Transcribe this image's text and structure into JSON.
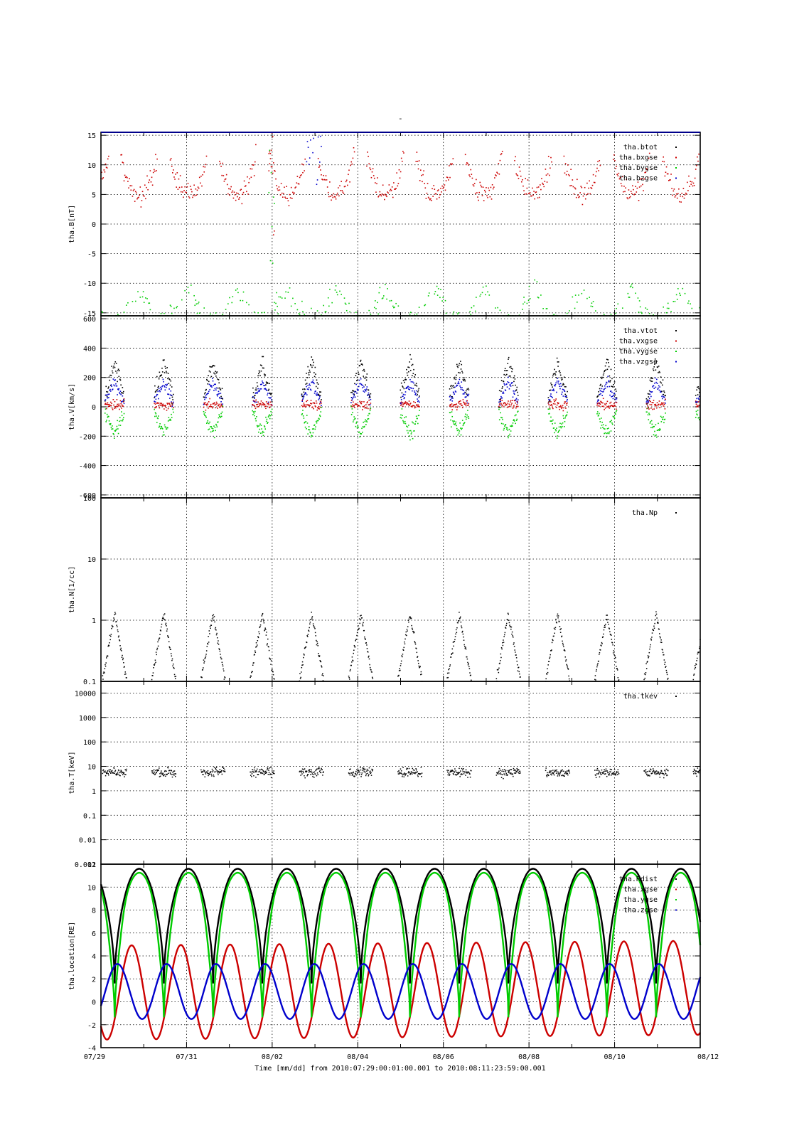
{
  "figure": {
    "title": "-",
    "x_axis_label": "Time [mm/dd]  from 2010:07:29:00:01:00.001  to  2010:08:11:23:59:00.001",
    "x_ticks": [
      "07/29",
      "07/31",
      "08/02",
      "08/04",
      "08/06",
      "08/08",
      "08/10",
      "08/12"
    ],
    "x_range_days": [
      0,
      14
    ]
  },
  "chart_data": [
    {
      "type": "scatter",
      "ylabel": "tha.B[nT]",
      "ylim": [
        -15.5,
        15.5
      ],
      "yticks": [
        15,
        10,
        5,
        0,
        -5,
        -10,
        -15
      ],
      "ytick_labels": [
        "15",
        "10",
        "5",
        "0",
        "-5",
        "-10",
        "-15"
      ],
      "grid": true,
      "legend_position": "top-right",
      "series": [
        {
          "name": "tha.btot",
          "color": "#000000"
        },
        {
          "name": "tha.bxgse",
          "color": "#cc0000"
        },
        {
          "name": "tha.bygse",
          "color": "#00cc00"
        },
        {
          "name": "tha.bzgse",
          "color": "#0000cc"
        }
      ]
    },
    {
      "type": "scatter",
      "ylabel": "tha.V[km/s]",
      "ylim": [
        -620,
        620
      ],
      "yticks": [
        600,
        400,
        200,
        0,
        -200,
        -400,
        -600
      ],
      "ytick_labels": [
        "600",
        "400",
        "200",
        "0",
        "-200",
        "-400",
        "-600"
      ],
      "grid": true,
      "legend_position": "top-right",
      "series": [
        {
          "name": "tha.vtot",
          "color": "#000000"
        },
        {
          "name": "tha.vxgse",
          "color": "#cc0000"
        },
        {
          "name": "tha.vygse",
          "color": "#00cc00"
        },
        {
          "name": "tha.vzgse",
          "color": "#0000cc"
        }
      ]
    },
    {
      "type": "scatter",
      "ylabel": "tha.N[1/cc]",
      "yscale": "log",
      "ylim": [
        0.1,
        100
      ],
      "yticks": [
        100,
        10,
        1,
        0.1
      ],
      "ytick_labels": [
        "100",
        "10",
        "1",
        "0.1"
      ],
      "grid": true,
      "legend_position": "top-right",
      "series": [
        {
          "name": "tha.Np",
          "color": "#000000"
        }
      ]
    },
    {
      "type": "scatter",
      "ylabel": "tha.T[keV]",
      "yscale": "log",
      "ylim": [
        0.001,
        30000
      ],
      "yticks": [
        10000,
        1000,
        100,
        10,
        1,
        0.1,
        0.01,
        0.001
      ],
      "ytick_labels": [
        "10000",
        "1000",
        "100",
        "10",
        "1",
        "0.1",
        "0.01",
        "0.001"
      ],
      "grid": true,
      "legend_position": "top-right",
      "series": [
        {
          "name": "tha.tkev",
          "color": "#000000"
        }
      ]
    },
    {
      "type": "line",
      "ylabel": "tha.location[RE]",
      "ylim": [
        -4,
        12
      ],
      "yticks": [
        12,
        10,
        8,
        6,
        4,
        2,
        0,
        -2,
        -4
      ],
      "ytick_labels": [
        "12",
        "10",
        "8",
        "6",
        "4",
        "2",
        "0",
        "-2",
        "-4"
      ],
      "grid": true,
      "legend_position": "top-right",
      "series": [
        {
          "name": "tha.Rdist",
          "color": "#000000"
        },
        {
          "name": "tha.xgse",
          "color": "#cc0000"
        },
        {
          "name": "tha.ygse",
          "color": "#00cc00"
        },
        {
          "name": "tha.zgse",
          "color": "#0000cc"
        }
      ]
    }
  ]
}
